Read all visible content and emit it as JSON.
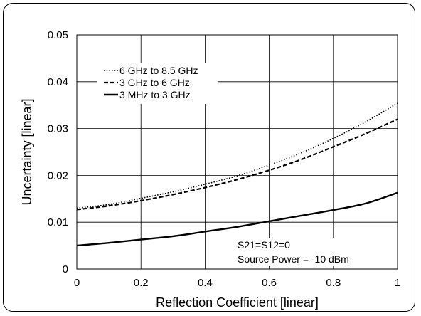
{
  "chart_data": {
    "type": "line",
    "title": "",
    "xlabel": "Reflection Coefficient [linear]",
    "ylabel": "Uncertainty [linear]",
    "xlim": [
      0,
      1
    ],
    "ylim": [
      0,
      0.05
    ],
    "xticks": [
      0,
      0.2,
      0.4,
      0.6,
      0.8,
      1
    ],
    "xtick_labels": [
      "0",
      "0.2",
      "0.4",
      "0.6",
      "0.8",
      "1"
    ],
    "yticks": [
      0,
      0.01,
      0.02,
      0.03,
      0.04,
      0.05
    ],
    "ytick_labels": [
      "0",
      "0.01",
      "0.02",
      "0.03",
      "0.04",
      "0.05"
    ],
    "grid": true,
    "legend_position": "top-left",
    "series": [
      {
        "name": "6 GHz to 8.5 GHz",
        "style": "dotted",
        "x": [
          0,
          0.1,
          0.2,
          0.3,
          0.4,
          0.5,
          0.6,
          0.7,
          0.8,
          0.9,
          1.0
        ],
        "y": [
          0.013,
          0.0138,
          0.0151,
          0.0165,
          0.0181,
          0.0199,
          0.0222,
          0.0248,
          0.0279,
          0.0314,
          0.0354
        ]
      },
      {
        "name": "3 GHz to 6 GHz",
        "style": "dashed",
        "x": [
          0,
          0.1,
          0.2,
          0.3,
          0.4,
          0.5,
          0.6,
          0.7,
          0.8,
          0.9,
          1.0
        ],
        "y": [
          0.0127,
          0.0135,
          0.0146,
          0.0159,
          0.0174,
          0.0191,
          0.0211,
          0.0234,
          0.0261,
          0.0289,
          0.032
        ]
      },
      {
        "name": "3 MHz to 3 GHz",
        "style": "solid",
        "x": [
          0,
          0.1,
          0.2,
          0.3,
          0.4,
          0.5,
          0.6,
          0.7,
          0.8,
          0.9,
          1.0
        ],
        "y": [
          0.005,
          0.0056,
          0.0063,
          0.007,
          0.008,
          0.009,
          0.0102,
          0.0114,
          0.0126,
          0.014,
          0.0163
        ]
      }
    ],
    "annotations": [
      "S21=S12=0",
      "Source Power = -10 dBm"
    ]
  }
}
